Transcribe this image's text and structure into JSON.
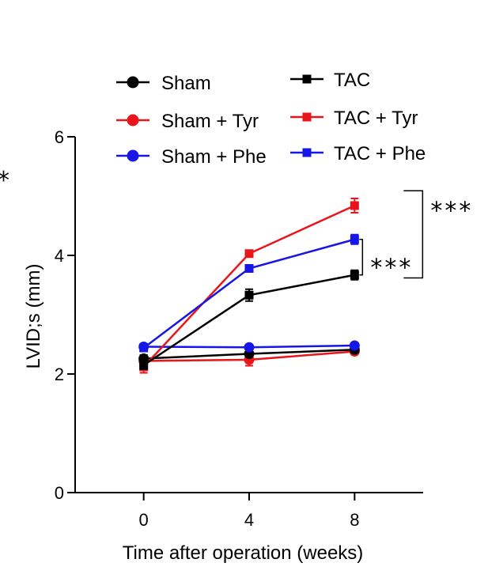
{
  "chart_data": {
    "type": "line",
    "title": "",
    "xlabel": "Time after operation (weeks)",
    "ylabel": "LVID;s (mm)",
    "x": [
      0,
      4,
      8
    ],
    "x_ticks": [
      "0",
      "4",
      "8"
    ],
    "y_ticks": [
      "0",
      "2",
      "4",
      "6"
    ],
    "xlim": [
      -2.6,
      10.6
    ],
    "ylim": [
      0,
      6
    ],
    "grid": false,
    "legend_position": "top",
    "series": [
      {
        "name": "Sham",
        "color": "#000000",
        "marker": "circle",
        "values": [
          2.26,
          2.34,
          2.41
        ],
        "errors": [
          0.06,
          0.05,
          0.05
        ]
      },
      {
        "name": "TAC",
        "color": "#000000",
        "marker": "square",
        "values": [
          2.15,
          3.33,
          3.67
        ],
        "errors": [
          0.07,
          0.1,
          0.08
        ]
      },
      {
        "name": "Sham + Tyr",
        "color": "#e8161b",
        "marker": "circle",
        "values": [
          2.22,
          2.24,
          2.38
        ],
        "errors": [
          0.1,
          0.1,
          0.05
        ]
      },
      {
        "name": "TAC + Tyr",
        "color": "#e8161b",
        "marker": "square",
        "values": [
          2.12,
          4.03,
          4.84
        ],
        "errors": [
          0.1,
          0.05,
          0.12
        ]
      },
      {
        "name": "Sham + Phe",
        "color": "#1616e6",
        "marker": "circle",
        "values": [
          2.46,
          2.45,
          2.48
        ],
        "errors": [
          0.05,
          0.04,
          0.04
        ]
      },
      {
        "name": "TAC + Phe",
        "color": "#1616e6",
        "marker": "square",
        "values": [
          2.44,
          3.78,
          4.27
        ],
        "errors": [
          0.05,
          0.05,
          0.08
        ]
      }
    ],
    "annotations": [
      {
        "text": "***",
        "between": [
          "TAC",
          "TAC + Phe"
        ],
        "week": 8
      },
      {
        "text": "***",
        "between": [
          "TAC",
          "TAC + Tyr"
        ],
        "week": 8
      },
      {
        "text": "*",
        "note": "clipped at left edge"
      }
    ]
  }
}
